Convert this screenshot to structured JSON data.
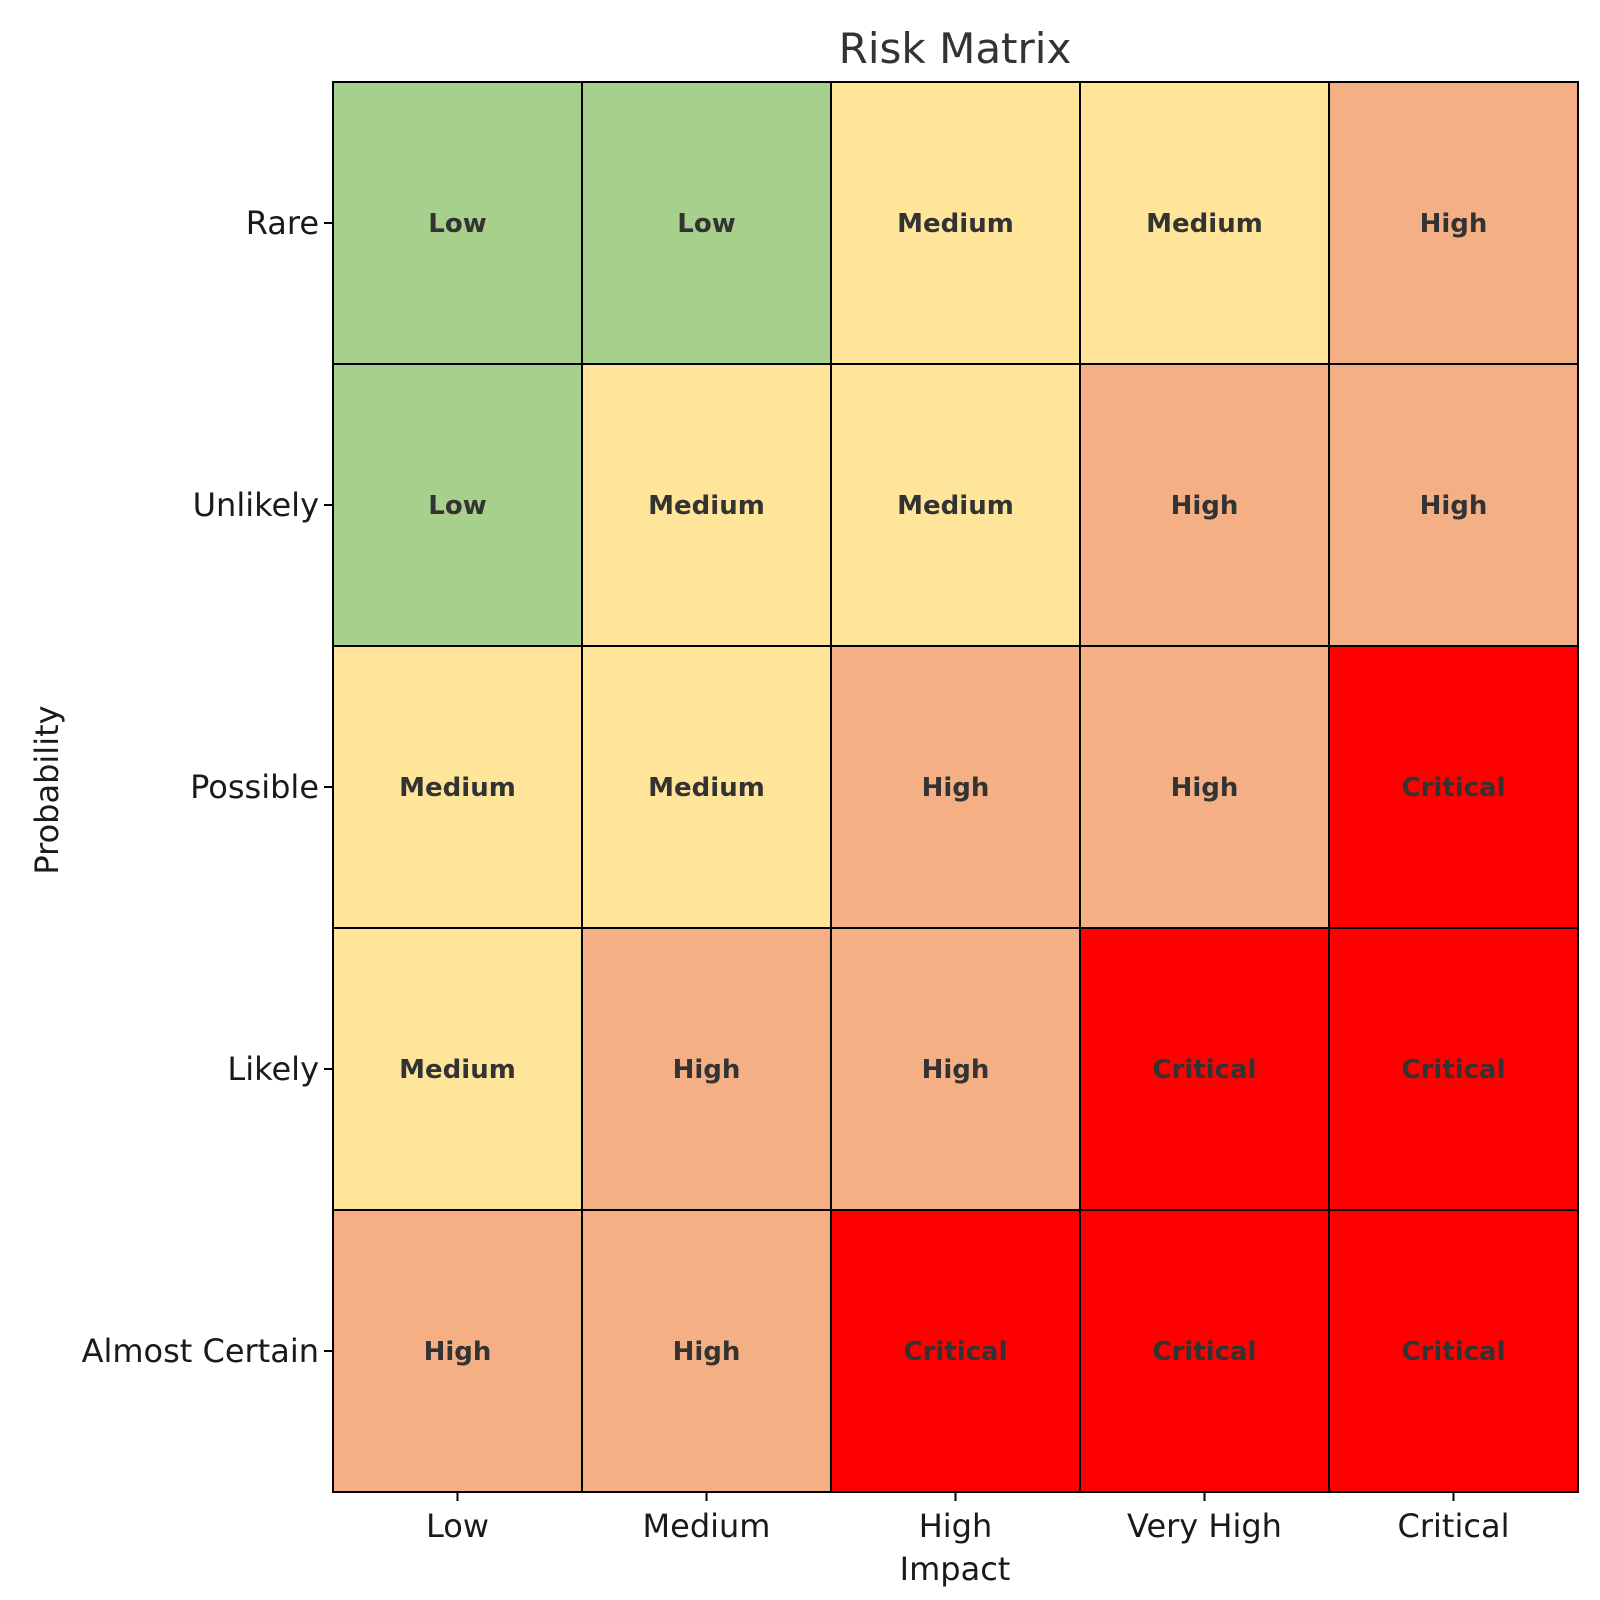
{
  "chart_data": {
    "type": "heatmap",
    "title": "Risk Matrix",
    "xlabel": "Impact",
    "ylabel": "Probability",
    "x_categories": [
      "Low",
      "Medium",
      "High",
      "Very High",
      "Critical"
    ],
    "y_categories": [
      "Rare",
      "Unlikely",
      "Possible",
      "Likely",
      "Almost Certain"
    ],
    "cells": [
      [
        "Low",
        "Low",
        "Medium",
        "Medium",
        "High"
      ],
      [
        "Low",
        "Medium",
        "Medium",
        "High",
        "High"
      ],
      [
        "Medium",
        "Medium",
        "High",
        "High",
        "Critical"
      ],
      [
        "Medium",
        "High",
        "High",
        "Critical",
        "Critical"
      ],
      [
        "High",
        "High",
        "Critical",
        "Critical",
        "Critical"
      ]
    ],
    "colors": {
      "Low": "#a8d08d",
      "Medium": "#ffe599",
      "High": "#f4b084",
      "Critical": "#ff0000"
    }
  }
}
